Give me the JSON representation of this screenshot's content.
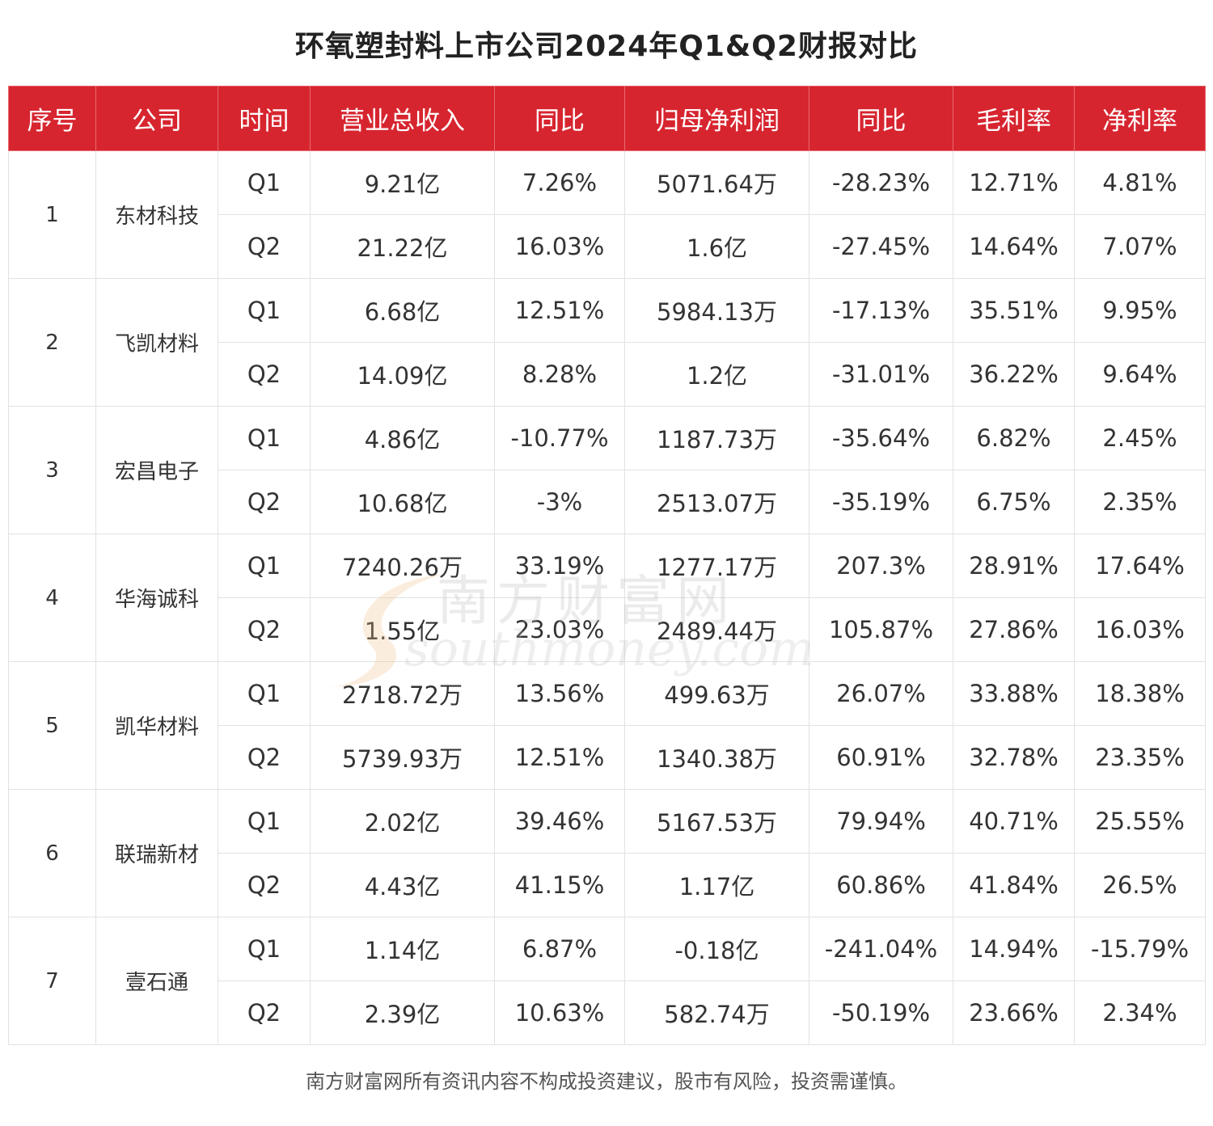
{
  "title": "环氧塑封料上市公司2024年Q1&Q2财报对比",
  "headers": [
    "序号",
    "公司",
    "时间",
    "营业总收入",
    "同比",
    "归母净利润",
    "同比",
    "毛利率",
    "净利率"
  ],
  "rows": [
    {
      "index": "1",
      "company": "东材科技",
      "periods": [
        {
          "period": "Q1",
          "revenue": "9.21亿",
          "revenue_yoy": "7.26%",
          "net_profit": "5071.64万",
          "profit_yoy": "-28.23%",
          "gross_margin": "12.71%",
          "net_margin": "4.81%"
        },
        {
          "period": "Q2",
          "revenue": "21.22亿",
          "revenue_yoy": "16.03%",
          "net_profit": "1.6亿",
          "profit_yoy": "-27.45%",
          "gross_margin": "14.64%",
          "net_margin": "7.07%"
        }
      ]
    },
    {
      "index": "2",
      "company": "飞凯材料",
      "periods": [
        {
          "period": "Q1",
          "revenue": "6.68亿",
          "revenue_yoy": "12.51%",
          "net_profit": "5984.13万",
          "profit_yoy": "-17.13%",
          "gross_margin": "35.51%",
          "net_margin": "9.95%"
        },
        {
          "period": "Q2",
          "revenue": "14.09亿",
          "revenue_yoy": "8.28%",
          "net_profit": "1.2亿",
          "profit_yoy": "-31.01%",
          "gross_margin": "36.22%",
          "net_margin": "9.64%"
        }
      ]
    },
    {
      "index": "3",
      "company": "宏昌电子",
      "periods": [
        {
          "period": "Q1",
          "revenue": "4.86亿",
          "revenue_yoy": "-10.77%",
          "net_profit": "1187.73万",
          "profit_yoy": "-35.64%",
          "gross_margin": "6.82%",
          "net_margin": "2.45%"
        },
        {
          "period": "Q2",
          "revenue": "10.68亿",
          "revenue_yoy": "-3%",
          "net_profit": "2513.07万",
          "profit_yoy": "-35.19%",
          "gross_margin": "6.75%",
          "net_margin": "2.35%"
        }
      ]
    },
    {
      "index": "4",
      "company": "华海诚科",
      "periods": [
        {
          "period": "Q1",
          "revenue": "7240.26万",
          "revenue_yoy": "33.19%",
          "net_profit": "1277.17万",
          "profit_yoy": "207.3%",
          "gross_margin": "28.91%",
          "net_margin": "17.64%"
        },
        {
          "period": "Q2",
          "revenue": "1.55亿",
          "revenue_yoy": "23.03%",
          "net_profit": "2489.44万",
          "profit_yoy": "105.87%",
          "gross_margin": "27.86%",
          "net_margin": "16.03%"
        }
      ]
    },
    {
      "index": "5",
      "company": "凯华材料",
      "periods": [
        {
          "period": "Q1",
          "revenue": "2718.72万",
          "revenue_yoy": "13.56%",
          "net_profit": "499.63万",
          "profit_yoy": "26.07%",
          "gross_margin": "33.88%",
          "net_margin": "18.38%"
        },
        {
          "period": "Q2",
          "revenue": "5739.93万",
          "revenue_yoy": "12.51%",
          "net_profit": "1340.38万",
          "profit_yoy": "60.91%",
          "gross_margin": "32.78%",
          "net_margin": "23.35%"
        }
      ]
    },
    {
      "index": "6",
      "company": "联瑞新材",
      "periods": [
        {
          "period": "Q1",
          "revenue": "2.02亿",
          "revenue_yoy": "39.46%",
          "net_profit": "5167.53万",
          "profit_yoy": "79.94%",
          "gross_margin": "40.71%",
          "net_margin": "25.55%"
        },
        {
          "period": "Q2",
          "revenue": "4.43亿",
          "revenue_yoy": "41.15%",
          "net_profit": "1.17亿",
          "profit_yoy": "60.86%",
          "gross_margin": "41.84%",
          "net_margin": "26.5%"
        }
      ]
    },
    {
      "index": "7",
      "company": "壹石通",
      "periods": [
        {
          "period": "Q1",
          "revenue": "1.14亿",
          "revenue_yoy": "6.87%",
          "net_profit": "-0.18亿",
          "profit_yoy": "-241.04%",
          "gross_margin": "14.94%",
          "net_margin": "-15.79%"
        },
        {
          "period": "Q2",
          "revenue": "2.39亿",
          "revenue_yoy": "10.63%",
          "net_profit": "582.74万",
          "profit_yoy": "-50.19%",
          "gross_margin": "23.66%",
          "net_margin": "2.34%"
        }
      ]
    }
  ],
  "watermark": {
    "cn": "南方财富网",
    "en": "southmoney.com"
  },
  "disclaimer": "南方财富网所有资讯内容不构成投资建议，股市有风险，投资需谨慎。",
  "colors": {
    "header_bg": "#d7252f",
    "header_text": "#ffffff",
    "grid": "#e2e2e2",
    "watermark_accent": "#f3c08a"
  }
}
